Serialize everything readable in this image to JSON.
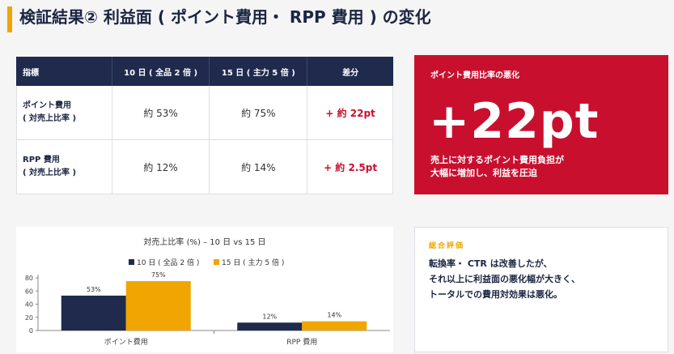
{
  "header": {
    "title": "検証結果② 利益面 ( ポイント費用・ RPP 費用 ) の変化"
  },
  "table": {
    "headers": [
      "指標",
      "10 日 ( 全品 2 倍 )",
      "15 日 ( 主力 5 倍 )",
      "差分"
    ],
    "rows": [
      {
        "label_line1": "ポイント費用",
        "label_line2": "( 対売上比率 )",
        "v10": "約 53%",
        "v15": "約 75%",
        "diff": "+ 約 22pt"
      },
      {
        "label_line1": "RPP 費用",
        "label_line2": "( 対売上比率 )",
        "v10": "約 12%",
        "v15": "約 14%",
        "diff": "+ 約 2.5pt"
      }
    ]
  },
  "highlight": {
    "heading": "ポイント費用比率の悪化",
    "big_value": "+22pt",
    "line1": "売上に対するポイント費用負担が",
    "line2": "大幅に増加し、利益を圧迫",
    "color": "#c8102e"
  },
  "chart_data": {
    "type": "bar",
    "title": "対売上比率 (%) – 10 日 vs 15 日",
    "categories": [
      "ポイント費用",
      "RPP 費用"
    ],
    "series": [
      {
        "name": "10 日 ( 全品 2 倍 )",
        "values": [
          53,
          12
        ],
        "labels": [
          "53%",
          "12%"
        ],
        "color": "#1f2a4d"
      },
      {
        "name": "15 日 ( 主力 5 倍 )",
        "values": [
          75,
          14
        ],
        "labels": [
          "75%",
          "14%"
        ],
        "color": "#f0a500"
      }
    ],
    "ylim": [
      0,
      80
    ],
    "yticks": [
      "0",
      "20",
      "40",
      "60",
      "80"
    ],
    "grid": false,
    "legend": "top-center"
  },
  "evaluation": {
    "heading": "総合評価",
    "line1": "転換率・ CTR は改善したが、",
    "line2": "それ以上に利益面の悪化幅が大きく、",
    "line3": "トータルでの費用対効果は悪化。",
    "accent": "#f0a500"
  }
}
